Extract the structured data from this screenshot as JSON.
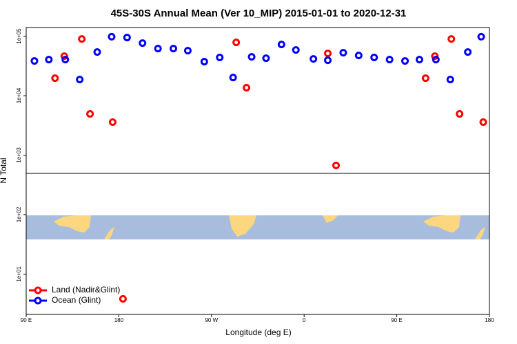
{
  "chart_data": {
    "type": "scatter",
    "title": "45S-30S Annual Mean (Ver 10_MIP)   2015-01-01 to 2020-12-31",
    "x_label": "Longitude (deg E)",
    "y_label": "N Total",
    "log_y": true,
    "legend": "bottomleft",
    "xlim": [
      90,
      540
    ],
    "ylim": [
      2.1,
      140000
    ],
    "xticks": [
      {
        "value": 90,
        "label": "90 E"
      },
      {
        "value": 180,
        "label": "180"
      },
      {
        "value": 270,
        "label": "90 W"
      },
      {
        "value": 360,
        "label": "0"
      },
      {
        "value": 450,
        "label": "90 E"
      },
      {
        "value": 540,
        "label": "180"
      }
    ],
    "yticks": [
      {
        "value": 10,
        "label": "1e+01"
      },
      {
        "value": 100,
        "label": "1e+02"
      },
      {
        "value": 1000,
        "label": "1e+03"
      },
      {
        "value": 10000,
        "label": "1e+04"
      },
      {
        "value": 100000,
        "label": "1e+05"
      }
    ],
    "series": [
      {
        "name": "Land (Nadir&Glint)",
        "color": "#ff0000",
        "x": [
          118,
          127,
          144,
          152,
          174,
          184,
          294,
          304,
          383,
          391,
          478,
          487,
          503,
          511,
          534
        ],
        "values": [
          19700,
          46200,
          90000,
          4940,
          3590,
          3.84,
          78700,
          13600,
          51400,
          671,
          19700,
          46200,
          90000,
          4940,
          3590
        ]
      },
      {
        "name": "Ocean (Glint)",
        "color": "#0000ff",
        "x": [
          98,
          112,
          128,
          142,
          159,
          173,
          188,
          203,
          218,
          233,
          247,
          263,
          278,
          291,
          309,
          323,
          338,
          352,
          369,
          383,
          398,
          413,
          428,
          443,
          458,
          472,
          488,
          502,
          519,
          532
        ],
        "values": [
          38400,
          40400,
          40400,
          18700,
          54200,
          98000,
          95000,
          76600,
          62000,
          62000,
          57100,
          37300,
          43900,
          20200,
          45000,
          42700,
          72600,
          58700,
          41500,
          39400,
          52800,
          47400,
          43900,
          40400,
          38400,
          40400,
          40400,
          18700,
          54200,
          98000
        ]
      }
    ]
  }
}
